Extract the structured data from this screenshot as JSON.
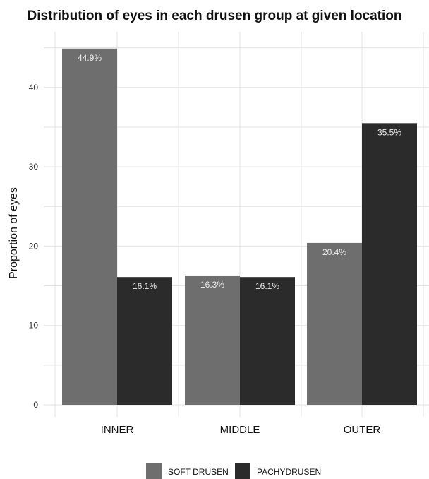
{
  "chart_data": {
    "type": "bar",
    "title": "Distribution of eyes in each drusen group at given location",
    "xlabel": "",
    "ylabel": "Proportion of eyes",
    "categories": [
      "INNER",
      "MIDDLE",
      "OUTER"
    ],
    "series": [
      {
        "name": "SOFT DRUSEN",
        "values": [
          44.9,
          16.3,
          20.4
        ],
        "labels": [
          "44.9%",
          "16.3%",
          "20.4%"
        ],
        "color": "#6e6e6e"
      },
      {
        "name": "PACHYDRUSEN",
        "values": [
          16.1,
          16.1,
          35.5
        ],
        "labels": [
          "16.1%",
          "16.1%",
          "35.5%"
        ],
        "color": "#2b2b2b"
      }
    ],
    "ylim": [
      0,
      47
    ],
    "yticks": [
      "0",
      "10",
      "20",
      "30",
      "40"
    ],
    "grid": true,
    "legend_position": "bottom"
  }
}
